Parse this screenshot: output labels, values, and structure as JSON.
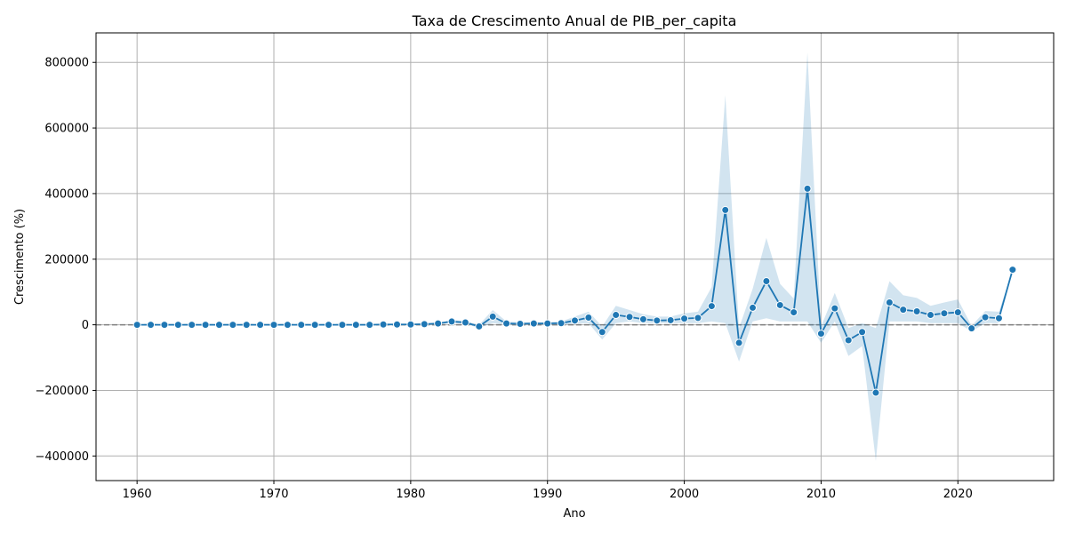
{
  "chart_data": {
    "type": "line",
    "title": "Taxa de Crescimento Anual de PIB_per_capita",
    "xlabel": "Ano",
    "ylabel": "Crescimento (%)",
    "xlim": [
      1957,
      2027
    ],
    "ylim": [
      -475000,
      890000
    ],
    "xticks": [
      1960,
      1970,
      1980,
      1990,
      2000,
      2010,
      2020
    ],
    "yticks": [
      -400000,
      -200000,
      0,
      200000,
      400000,
      600000,
      800000
    ],
    "ytick_labels": [
      "−400000",
      "−200000",
      "0",
      "200000",
      "400000",
      "600000",
      "800000"
    ],
    "grid": true,
    "reference_line": 0,
    "line_color": "#1f77b4",
    "band_color": "#1f77b4",
    "reference_line_color": "#808080",
    "series": [
      {
        "x": [
          1960,
          1961,
          1962,
          1963,
          1964,
          1965,
          1966,
          1967,
          1968,
          1969,
          1970,
          1971,
          1972,
          1973,
          1974,
          1975,
          1976,
          1977,
          1978,
          1979,
          1980,
          1981,
          1982,
          1983,
          1984,
          1985,
          1986,
          1987,
          1988,
          1989,
          1990,
          1991,
          1992,
          1993,
          1994,
          1995,
          1996,
          1997,
          1998,
          1999,
          2000,
          2001,
          2002,
          2003,
          2004,
          2005,
          2006,
          2007,
          2008,
          2009,
          2010,
          2011,
          2012,
          2013,
          2014,
          2015,
          2016,
          2017,
          2018,
          2019,
          2020,
          2021,
          2022,
          2023,
          2024
        ],
        "y": [
          0,
          0,
          0,
          0,
          0,
          0,
          0,
          0,
          0,
          0,
          0,
          0,
          0,
          0,
          0,
          0,
          0,
          0,
          1000,
          1000,
          1000,
          2000,
          4000,
          10000,
          7000,
          -5000,
          25000,
          4000,
          3000,
          4000,
          4000,
          5000,
          13000,
          22000,
          -22000,
          30000,
          24000,
          17000,
          13000,
          14000,
          19000,
          21000,
          57000,
          350000,
          -55000,
          52000,
          133000,
          60000,
          38000,
          415000,
          -27000,
          50000,
          -47000,
          -22000,
          -207000,
          68000,
          46000,
          41000,
          30000,
          35000,
          38000,
          -11000,
          23000,
          20000,
          168000
        ],
        "lower": [
          0,
          0,
          0,
          0,
          0,
          0,
          0,
          0,
          0,
          0,
          0,
          0,
          0,
          0,
          0,
          0,
          0,
          0,
          -1000,
          -1000,
          -1000,
          0,
          2000,
          5000,
          3000,
          -10000,
          5000,
          0,
          0,
          0,
          0,
          0,
          3000,
          5000,
          -45000,
          5000,
          10000,
          5000,
          5000,
          5000,
          5000,
          5000,
          10000,
          5000,
          -112000,
          10000,
          20000,
          10000,
          10000,
          10000,
          -55000,
          10000,
          -95000,
          -65000,
          -415000,
          10000,
          10000,
          10000,
          5000,
          5000,
          5000,
          -20000,
          5000,
          5000,
          168000
        ],
        "upper": [
          0,
          0,
          0,
          0,
          0,
          0,
          0,
          0,
          0,
          0,
          0,
          0,
          0,
          0,
          0,
          0,
          0,
          0,
          3000,
          3000,
          3000,
          4000,
          6000,
          15000,
          11000,
          0,
          45000,
          10000,
          8000,
          8000,
          8000,
          10000,
          25000,
          40000,
          -5000,
          58000,
          45000,
          32000,
          25000,
          25000,
          35000,
          40000,
          115000,
          700000,
          -10000,
          110000,
          265000,
          125000,
          80000,
          830000,
          -5000,
          97000,
          -10000,
          5000,
          -10000,
          133000,
          90000,
          82000,
          58000,
          68000,
          77000,
          -3000,
          42000,
          40000,
          168000
        ]
      }
    ]
  }
}
